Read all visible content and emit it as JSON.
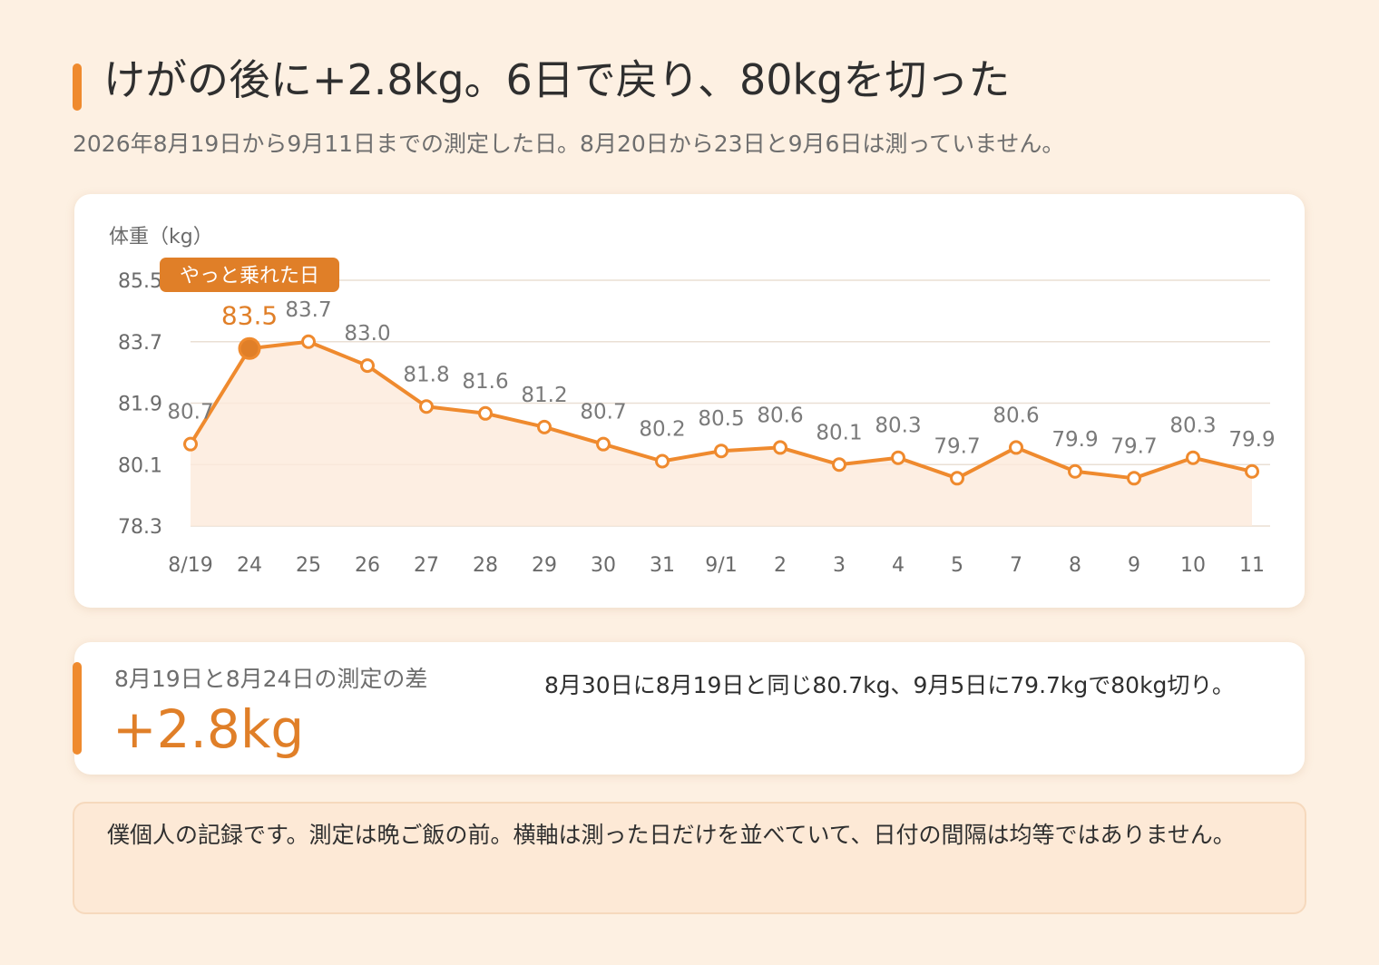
{
  "title": "けがの後に+2.8kg。6日で戻り、80kgを切った",
  "subtitle": "2026年8月19日から9月11日までの測定した日。8月20日から23日と9月6日は測っていません。",
  "chart_data": {
    "type": "line",
    "ylabel": "体重（kg）",
    "yticks": [
      "85.5",
      "83.7",
      "81.9",
      "80.1",
      "78.3"
    ],
    "ylim": [
      78.3,
      85.5
    ],
    "categories": [
      "8/19",
      "24",
      "25",
      "26",
      "27",
      "28",
      "29",
      "30",
      "31",
      "9/1",
      "2",
      "3",
      "4",
      "5",
      "7",
      "8",
      "9",
      "10",
      "11"
    ],
    "series": [
      {
        "values": [
          80.7,
          83.5,
          83.7,
          83.0,
          81.8,
          81.6,
          81.2,
          80.7,
          80.2,
          80.5,
          80.6,
          80.1,
          80.3,
          79.7,
          80.6,
          79.9,
          79.7,
          80.3,
          79.9
        ],
        "labels": [
          "80.7",
          "83.5",
          "83.7",
          "83.0",
          "81.8",
          "81.6",
          "81.2",
          "80.7",
          "80.2",
          "80.5",
          "80.6",
          "80.1",
          "80.3",
          "79.7",
          "80.6",
          "79.9",
          "79.7",
          "80.3",
          "79.9"
        ]
      }
    ],
    "highlight_index": 1,
    "annotation": "やっと乗れた日",
    "grid": true,
    "area_fill": true,
    "colors": {
      "line": "#ef8a2e",
      "area": "#fdeadb",
      "grid": "#eadfd4",
      "highlight": "#e07f28"
    }
  },
  "diff": {
    "label": "8月19日と8月24日の測定の差",
    "value": "+2.8kg",
    "note": "8月30日に8月19日と同じ80.7kg、9月5日に79.7kgで80kg切り。"
  },
  "footnote": "僕個人の記録です。測定は晩ご飯の前。横軸は測った日だけを並べていて、日付の間隔は均等ではありません。"
}
